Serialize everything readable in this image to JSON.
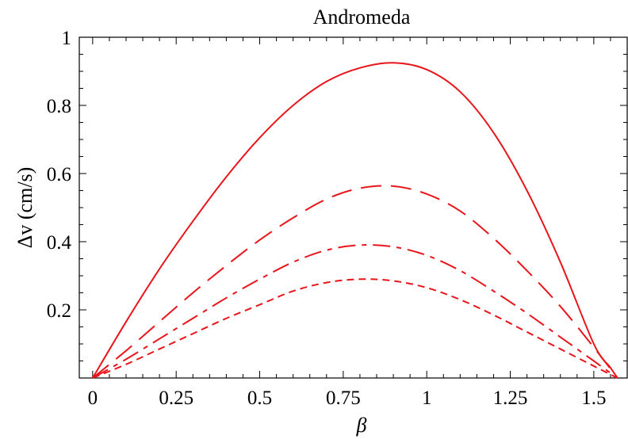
{
  "chart_data": {
    "type": "line",
    "title": "Andromeda",
    "xlabel": "β",
    "ylabel": "Δv (cm/s)",
    "xlim": [
      -0.04,
      1.6
    ],
    "ylim": [
      0,
      1
    ],
    "x_ticks": [
      0,
      0.25,
      0.5,
      0.75,
      1,
      1.25,
      1.5
    ],
    "x_tick_labels": [
      "0",
      "0.25",
      "0.5",
      "0.75",
      "1",
      "1.25",
      "1.5"
    ],
    "y_ticks": [
      0.2,
      0.4,
      0.6,
      0.8,
      1
    ],
    "y_tick_labels": [
      "0.2",
      "0.4",
      "0.6",
      "0.8",
      "1"
    ],
    "grid": false,
    "color": "#e8151b",
    "series": [
      {
        "style": "solid",
        "x": [
          0,
          0.1,
          0.2,
          0.3,
          0.4,
          0.5,
          0.6,
          0.7,
          0.8,
          0.9,
          1.0,
          1.1,
          1.2,
          1.3,
          1.4,
          1.5,
          1.55,
          1.5708
        ],
        "y": [
          0,
          0.165,
          0.32,
          0.46,
          0.59,
          0.705,
          0.8,
          0.87,
          0.91,
          0.925,
          0.905,
          0.84,
          0.72,
          0.55,
          0.34,
          0.1,
          0.03,
          0
        ]
      },
      {
        "style": "long-dash",
        "x": [
          0,
          0.1,
          0.2,
          0.3,
          0.4,
          0.5,
          0.6,
          0.7,
          0.8,
          0.9,
          1.0,
          1.1,
          1.2,
          1.3,
          1.4,
          1.5,
          1.5708
        ],
        "y": [
          0,
          0.08,
          0.165,
          0.25,
          0.33,
          0.405,
          0.47,
          0.525,
          0.557,
          0.563,
          0.54,
          0.49,
          0.41,
          0.315,
          0.21,
          0.09,
          0
        ]
      },
      {
        "style": "dash-dot",
        "x": [
          0,
          0.1,
          0.2,
          0.3,
          0.4,
          0.5,
          0.6,
          0.7,
          0.8,
          0.9,
          1.0,
          1.1,
          1.2,
          1.3,
          1.4,
          1.5,
          1.5708
        ],
        "y": [
          0,
          0.055,
          0.115,
          0.175,
          0.235,
          0.29,
          0.34,
          0.375,
          0.39,
          0.385,
          0.36,
          0.315,
          0.255,
          0.19,
          0.12,
          0.05,
          0
        ]
      },
      {
        "style": "short-dash",
        "x": [
          0,
          0.1,
          0.2,
          0.3,
          0.4,
          0.5,
          0.6,
          0.7,
          0.8,
          0.9,
          1.0,
          1.1,
          1.2,
          1.3,
          1.4,
          1.5,
          1.5708
        ],
        "y": [
          0,
          0.04,
          0.085,
          0.13,
          0.175,
          0.215,
          0.255,
          0.28,
          0.29,
          0.285,
          0.265,
          0.23,
          0.185,
          0.135,
          0.085,
          0.035,
          0
        ]
      }
    ]
  }
}
